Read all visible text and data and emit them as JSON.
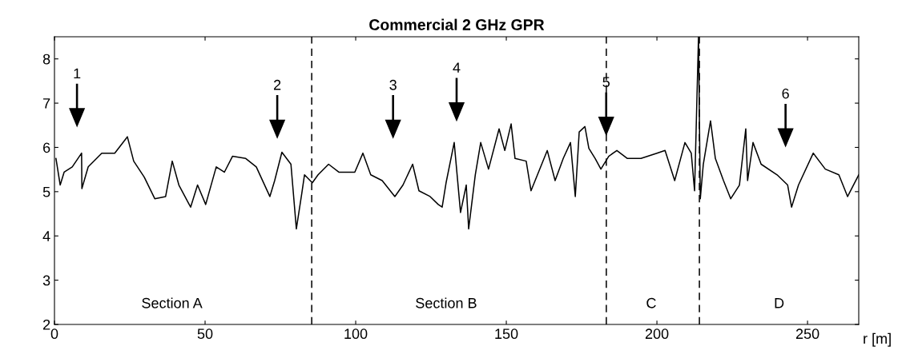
{
  "chart_data": {
    "type": "line",
    "title": "Commercial 2 GHz GPR",
    "xlabel": "r [m]",
    "xlim": [
      0,
      267
    ],
    "ylim": [
      2,
      8.5
    ],
    "xticks": [
      0,
      50,
      100,
      150,
      200,
      250
    ],
    "yticks": [
      2,
      3,
      4,
      5,
      6,
      7,
      8
    ],
    "grid": false,
    "legend": false,
    "marker": "none",
    "line_style": "solid",
    "series": [
      {
        "color": "#000000",
        "x": [
          0.5,
          1.9,
          3.2,
          5.9,
          9,
          9.1,
          11.2,
          15.7,
          20,
          24.2,
          26.3,
          29.8,
          33.3,
          36.9,
          39.1,
          41.3,
          45.2,
          47.5,
          50.2,
          53.7,
          56.4,
          59.1,
          63.5,
          67,
          71.5,
          73.1,
          75.5,
          78.5,
          80.3,
          82.1,
          83,
          85.6,
          87.5,
          91,
          94.4,
          99.7,
          102.4,
          105,
          108.8,
          113,
          115.7,
          118.9,
          121,
          124.7,
          127.4,
          128.7,
          130,
          132.7,
          134.8,
          136.7,
          137.5,
          139.7,
          141.5,
          144.1,
          147.6,
          149.5,
          151.6,
          152.9,
          156.6,
          158.2,
          163.6,
          166.2,
          168.9,
          171.3,
          172.9,
          174.2,
          176.1,
          177.4,
          179.5,
          181.4,
          184,
          186.7,
          190.2,
          194.7,
          200,
          202.7,
          205.9,
          209.3,
          211.4,
          212.5,
          213.8,
          214.4,
          215.4,
          217.8,
          219.4,
          222.1,
          224.5,
          227.4,
          229.5,
          230.1,
          231.9,
          234.6,
          239.9,
          243.4,
          244.7,
          247,
          251.9,
          255.9,
          260.4,
          263.3,
          267
        ],
        "values": [
          5.75,
          5.15,
          5.44,
          5.56,
          5.87,
          5.07,
          5.56,
          5.87,
          5.87,
          6.24,
          5.69,
          5.33,
          4.84,
          4.89,
          5.69,
          5.15,
          4.65,
          5.15,
          4.71,
          5.56,
          5.44,
          5.8,
          5.75,
          5.56,
          4.89,
          5.25,
          5.89,
          5.62,
          4.16,
          4.96,
          5.38,
          5.2,
          5.38,
          5.62,
          5.44,
          5.44,
          5.87,
          5.38,
          5.25,
          4.89,
          5.15,
          5.62,
          5.02,
          4.89,
          4.71,
          4.65,
          5.2,
          6.11,
          4.53,
          5.15,
          4.16,
          5.38,
          6.11,
          5.51,
          6.42,
          5.93,
          6.53,
          5.75,
          5.69,
          5.02,
          5.93,
          5.25,
          5.75,
          6.11,
          4.89,
          6.35,
          6.47,
          5.98,
          5.75,
          5.51,
          5.8,
          5.93,
          5.75,
          5.75,
          5.87,
          5.93,
          5.25,
          6.11,
          5.87,
          5.02,
          8.5,
          4.84,
          5.62,
          6.6,
          5.75,
          5.25,
          4.84,
          5.15,
          6.42,
          5.25,
          6.11,
          5.62,
          5.38,
          5.15,
          4.65,
          5.15,
          5.87,
          5.51,
          5.38,
          4.89,
          5.38
        ]
      }
    ],
    "ref_lines": [
      {
        "axis": "x",
        "value": 85.4,
        "color": "#000000",
        "line_style": "dashed"
      },
      {
        "axis": "x",
        "value": 183.2,
        "color": "#000000",
        "line_style": "dashed"
      },
      {
        "axis": "x",
        "value": 214.1,
        "color": "#000000",
        "line_style": "dashed"
      }
    ],
    "annotations": [
      "1",
      "2",
      "3",
      "4",
      "5",
      "6",
      "Section A",
      "Section B",
      "C",
      "D"
    ]
  }
}
